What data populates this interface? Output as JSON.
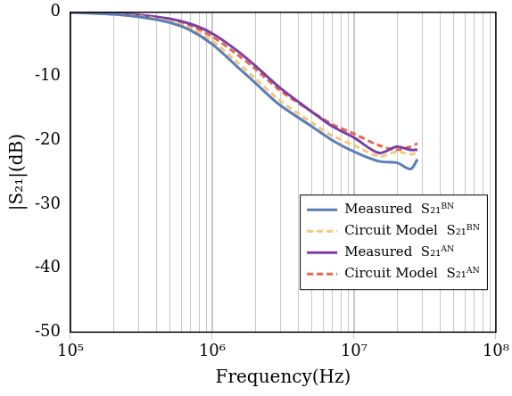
{
  "chart_data": {
    "type": "line",
    "x_label": "Frequency(Hz)",
    "y_label": "|S₂₁|(dB)",
    "log": "x",
    "grid": true,
    "legend": "lower right",
    "xlim": [
      100000,
      100000000
    ],
    "xticks": [
      {
        "value": 100000,
        "label": "10⁵"
      },
      {
        "value": 1000000,
        "label": "10⁶"
      },
      {
        "value": 10000000,
        "label": "10⁷"
      },
      {
        "value": 100000000,
        "label": "10⁸"
      }
    ],
    "ylim": [
      -50,
      0
    ],
    "yticks": [
      -50,
      -40,
      -30,
      -20,
      -10,
      0
    ],
    "x": [
      100000,
      200000,
      300000,
      500000,
      700000,
      1000000,
      1500000,
      2000000,
      3000000,
      5000000,
      7000000,
      10000000,
      15000000,
      20000000,
      25000000,
      28000000
    ],
    "series": [
      {
        "name": "Measured  S₂₁ᴮᴺ",
        "color": "#5b7db8",
        "line_style": "solid",
        "values": [
          0,
          -0.3,
          -0.7,
          -1.6,
          -2.8,
          -5,
          -8.5,
          -11,
          -14.5,
          -17.8,
          -20,
          -21.8,
          -23.3,
          -23.5,
          -24.5,
          -23
        ]
      },
      {
        "name": "Circuit Model  S₂₁ᴮᴺ",
        "color": "#f5c87a",
        "line_style": "dashed",
        "values": [
          0,
          -0.3,
          -0.6,
          -1.4,
          -2.5,
          -4.5,
          -7.8,
          -10.3,
          -13.8,
          -17.2,
          -19.3,
          -20.8,
          -22.5,
          -21.8,
          -22.2,
          -22
        ]
      },
      {
        "name": "Measured  S₂₁ᴬᴺ",
        "color": "#7b3fa6",
        "line_style": "solid",
        "values": [
          0,
          -0.2,
          -0.4,
          -1,
          -1.8,
          -3.3,
          -6,
          -8.3,
          -11.8,
          -15.5,
          -17.8,
          -19.6,
          -22,
          -21,
          -21.5,
          -21.5
        ]
      },
      {
        "name": "Circuit Model  S₂₁ᴬᴺ",
        "color": "#e8654f",
        "line_style": "dashed",
        "values": [
          0,
          -0.2,
          -0.5,
          -1.2,
          -2.1,
          -3.8,
          -6.6,
          -8.8,
          -12.2,
          -15.5,
          -17.5,
          -19,
          -20.8,
          -21.5,
          -21,
          -20.5
        ]
      }
    ]
  }
}
